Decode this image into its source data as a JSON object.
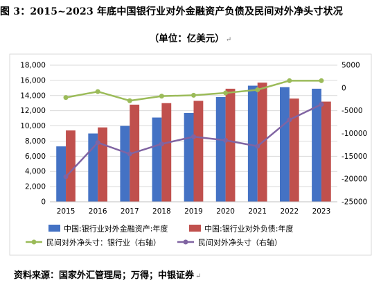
{
  "header": {
    "figure_label": "图 3：",
    "title": "2015~2023 年底中国银行业对外金融资产负债及民间对外净头寸状况",
    "subtitle": "（单位：亿美元）",
    "return_mark": "↵"
  },
  "footer": {
    "source": "资料来源：国家外汇管理局；万得；中银证券",
    "return_mark": "↵"
  },
  "colors": {
    "assets_bar": "#4472C4",
    "liabilities_bar": "#C0504D",
    "bank_nip_line": "#9BBB59",
    "private_nip_line": "#8064A2",
    "grid": "#d9d9d9"
  },
  "chart_data": {
    "type": "bar",
    "categories": [
      "2015",
      "2016",
      "2017",
      "2018",
      "2019",
      "2020",
      "2021",
      "2022",
      "2023"
    ],
    "left_axis": {
      "ylim": [
        0,
        18000
      ],
      "ticks": [
        "0",
        "2,000",
        "4,000",
        "6,000",
        "8,000",
        "10,000",
        "12,000",
        "14,000",
        "16,000",
        "18,000"
      ]
    },
    "right_axis": {
      "ylim": [
        -25000,
        5000
      ],
      "ticks": [
        "-25000",
        "-20000",
        "-15000",
        "-10000",
        "-5000",
        "0",
        "5000"
      ]
    },
    "series": [
      {
        "name": "中国:银行业对外金融资产:年度",
        "kind": "bar",
        "axis": "left",
        "values": [
          7300,
          9000,
          10000,
          11100,
          11700,
          13800,
          15300,
          15100,
          14900
        ]
      },
      {
        "name": "中国:银行业对外负债:年度",
        "kind": "bar",
        "axis": "left",
        "values": [
          9400,
          9800,
          12800,
          13000,
          13300,
          14900,
          15700,
          13600,
          13200
        ]
      },
      {
        "name": "民间对外净头寸：银行业（右轴）",
        "kind": "line",
        "axis": "right",
        "values": [
          -2100,
          -800,
          -2800,
          -1800,
          -1600,
          -1100,
          -400,
          1600,
          1600
        ]
      },
      {
        "name": "民间对外净头寸（右轴）",
        "kind": "line",
        "axis": "right",
        "values": [
          -19500,
          -12000,
          -14500,
          -12300,
          -10700,
          -11500,
          -12800,
          -7000,
          -3600
        ]
      }
    ],
    "legend_position": "bottom",
    "grid": true
  }
}
